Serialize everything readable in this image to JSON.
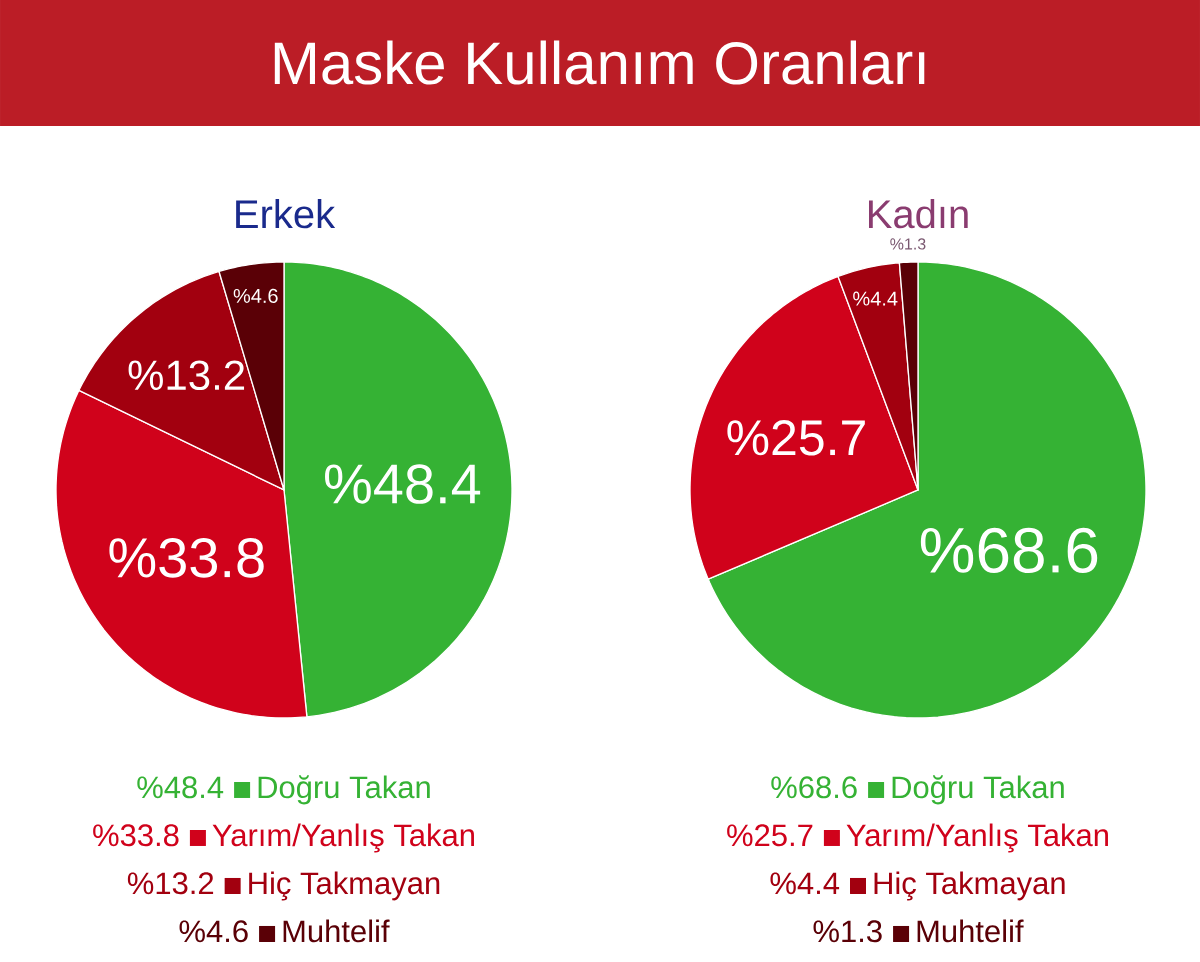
{
  "chart_data": [
    {
      "type": "pie",
      "title": "Maske Kullanım Oranları",
      "subtitle": "Erkek",
      "categories": [
        "Doğru Takan",
        "Yarım/Yanlış Takan",
        "Hiç Takmayan",
        "Muhtelif"
      ],
      "values": [
        48.4,
        33.8,
        13.2,
        4.6
      ],
      "colors": [
        "#35b234",
        "#d0021b",
        "#a2000f",
        "#5a0006"
      ],
      "value_labels": [
        "%48.4",
        "%33.8",
        "%13.2",
        "%4.6"
      ],
      "legend": "bottom"
    },
    {
      "type": "pie",
      "subtitle": "Kadın",
      "categories": [
        "Doğru Takan",
        "Yarım/Yanlış Takan",
        "Hiç Takmayan",
        "Muhtelif"
      ],
      "values": [
        68.6,
        25.7,
        4.4,
        1.3
      ],
      "colors": [
        "#35b234",
        "#d0021b",
        "#a2000f",
        "#5a0006"
      ],
      "value_labels": [
        "%68.6",
        "%25.7",
        "%4.4",
        "%1.3"
      ],
      "legend": "bottom"
    }
  ]
}
